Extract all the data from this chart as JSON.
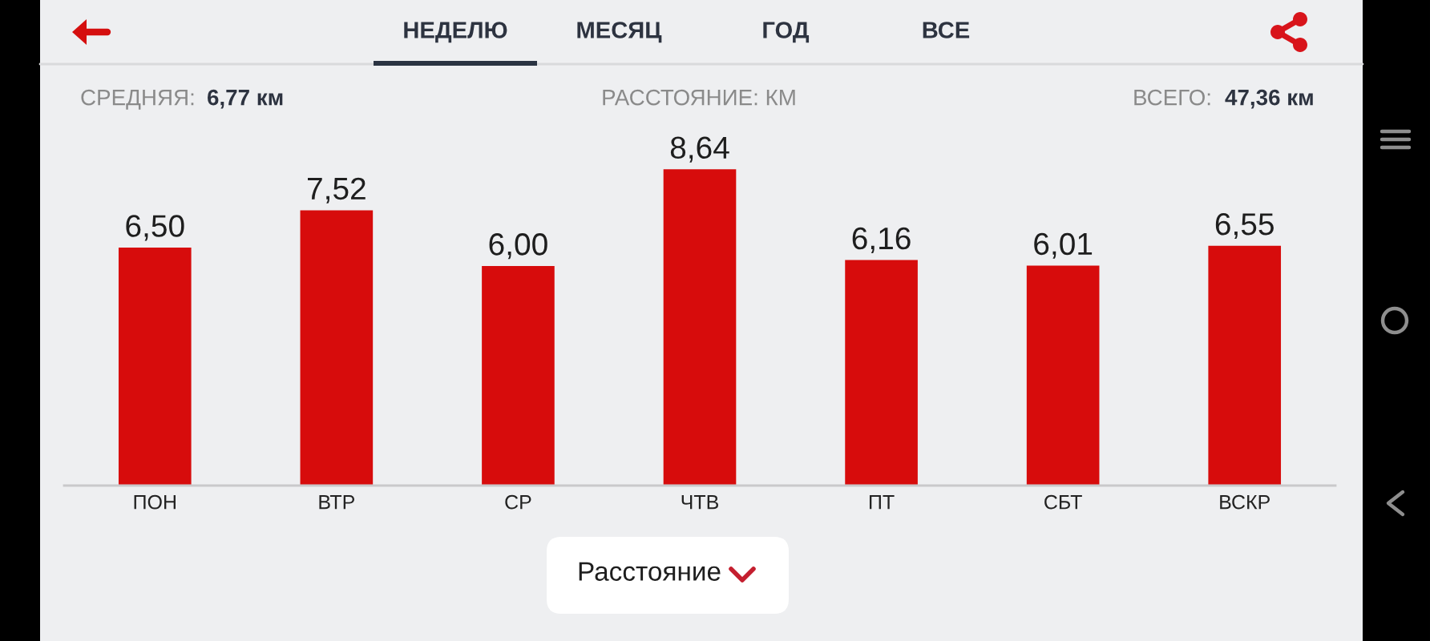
{
  "chart_data": {
    "type": "bar",
    "title": "РАССТОЯНИЕ: КМ",
    "categories": [
      "ПОН",
      "ВТР",
      "СР",
      "ЧТВ",
      "ПТ",
      "СБТ",
      "ВСКР"
    ],
    "values": [
      6.5,
      7.52,
      6.0,
      8.64,
      6.16,
      6.01,
      6.55
    ],
    "value_labels": [
      "6,50",
      "7,52",
      "6,00",
      "8,64",
      "6,16",
      "6,01",
      "6,55"
    ],
    "color": "#d70c0c",
    "tick_labels": "x",
    "annotations": [
      "НЕДЕЛЮ",
      "МЕСЯЦ",
      "ГОД",
      "ВСЕ",
      "СРЕДНЯЯ:",
      "6,77 км",
      "ВСЕГО:",
      "47,36 км",
      "Расстояние"
    ]
  }
}
